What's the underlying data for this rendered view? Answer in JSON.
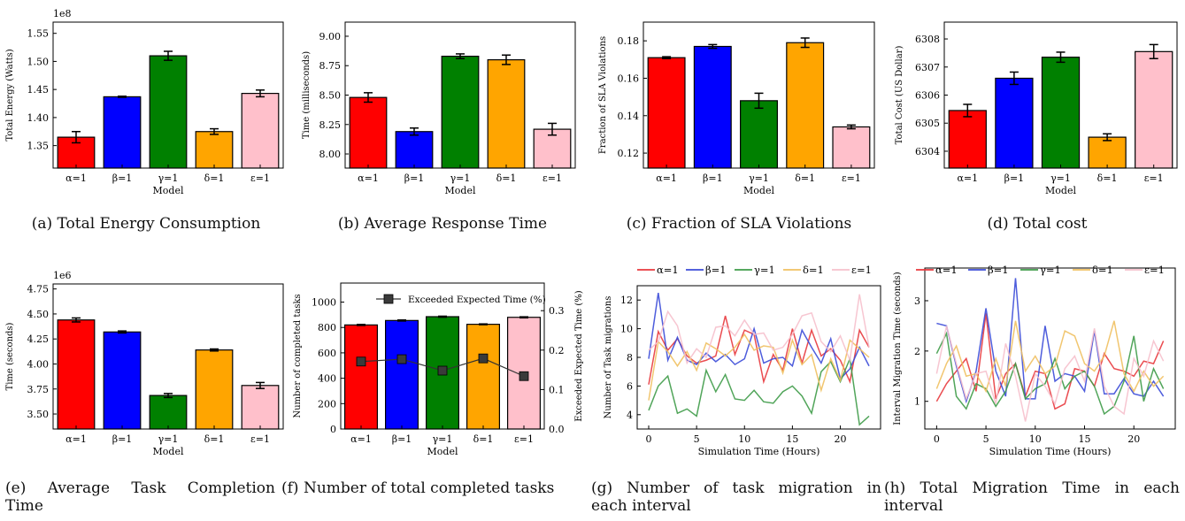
{
  "captions": [
    "(a) Total Energy Consumption",
    "(b) Average Response Time",
    "(c) Fraction of SLA Violations",
    "(d) Total cost",
    "(e) Average Task Completion",
    "Time",
    "(f) Number of total completed tasks",
    "(g) Number of task migration in",
    "each interval",
    "(h) Total Migration Time in each",
    "interval"
  ],
  "colors": {
    "bars": [
      "#ff0000",
      "#0000ff",
      "#008000",
      "#ffa500",
      "#ffc0cb"
    ],
    "lines": [
      "#e8383d",
      "#3b4bd8",
      "#3e9b48",
      "#f0c060",
      "#f6c0cc"
    ]
  },
  "chart_data": [
    {
      "id": "a",
      "type": "bar",
      "categories": [
        "α=1",
        "β=1",
        "γ=1",
        "δ=1",
        "ε=1"
      ],
      "values": [
        1.365,
        1.437,
        1.51,
        1.375,
        1.443
      ],
      "errors": [
        0.01,
        0.001,
        0.008,
        0.005,
        0.006
      ],
      "ylim": [
        1.31,
        1.57
      ],
      "yticks": [
        1.35,
        1.4,
        1.45,
        1.5,
        1.55
      ],
      "ytick_labels": [
        "1.35",
        "1.40",
        "1.45",
        "1.50",
        "1.55"
      ],
      "offset_label": "1e8",
      "xlabel": "Model",
      "ylabel": "Total Energy (Watts)"
    },
    {
      "id": "b",
      "type": "bar",
      "categories": [
        "α=1",
        "β=1",
        "γ=1",
        "δ=1",
        "ε=1"
      ],
      "values": [
        8.48,
        8.19,
        8.83,
        8.8,
        8.21
      ],
      "errors": [
        0.04,
        0.03,
        0.02,
        0.04,
        0.05
      ],
      "ylim": [
        7.88,
        9.12
      ],
      "yticks": [
        8.0,
        8.25,
        8.5,
        8.75,
        9.0
      ],
      "ytick_labels": [
        "8.00",
        "8.25",
        "8.50",
        "8.75",
        "9.00"
      ],
      "xlabel": "Model",
      "ylabel": "Time (milliseconds)"
    },
    {
      "id": "c",
      "type": "bar",
      "categories": [
        "α=1",
        "β=1",
        "γ=1",
        "δ=1",
        "ε=1"
      ],
      "values": [
        0.171,
        0.177,
        0.148,
        0.179,
        0.134
      ],
      "errors": [
        0.0005,
        0.001,
        0.004,
        0.0025,
        0.001
      ],
      "ylim": [
        0.112,
        0.19
      ],
      "yticks": [
        0.12,
        0.14,
        0.16,
        0.18
      ],
      "ytick_labels": [
        "0.12",
        "0.14",
        "0.16",
        "0.18"
      ],
      "xlabel": "Model",
      "ylabel": "Fraction of SLA Violations"
    },
    {
      "id": "d",
      "type": "bar",
      "categories": [
        "α=1",
        "β=1",
        "γ=1",
        "δ=1",
        "ε=1"
      ],
      "values": [
        6305.45,
        6306.6,
        6307.35,
        6304.5,
        6307.55
      ],
      "errors": [
        0.22,
        0.22,
        0.18,
        0.12,
        0.25
      ],
      "ylim": [
        6303.4,
        6308.6
      ],
      "yticks": [
        6304,
        6305,
        6306,
        6307,
        6308
      ],
      "ytick_labels": [
        "6304",
        "6305",
        "6306",
        "6307",
        "6308"
      ],
      "xlabel": "Model",
      "ylabel": "Total Cost (US Dollar)"
    },
    {
      "id": "e",
      "type": "bar",
      "categories": [
        "α=1",
        "β=1",
        "γ=1",
        "δ=1",
        "ε=1"
      ],
      "values": [
        4.44,
        4.32,
        3.685,
        4.14,
        3.785
      ],
      "errors": [
        0.02,
        0.01,
        0.02,
        0.01,
        0.03
      ],
      "ylim": [
        3.35,
        4.8
      ],
      "yticks": [
        3.5,
        3.75,
        4.0,
        4.25,
        4.5,
        4.75
      ],
      "ytick_labels": [
        "3.50",
        "3.75",
        "4.00",
        "4.25",
        "4.50",
        "4.75"
      ],
      "offset_label": "1e6",
      "xlabel": "Model",
      "ylabel": "Time (seconds)"
    },
    {
      "id": "f",
      "type": "bar",
      "categories": [
        "α=1",
        "β=1",
        "γ=1",
        "δ=1",
        "ε=1"
      ],
      "values": [
        820,
        855,
        885,
        825,
        880
      ],
      "errors": [
        4,
        4,
        4,
        3,
        4
      ],
      "ylim": [
        0,
        1150
      ],
      "yticks": [
        0,
        200,
        400,
        600,
        800,
        1000
      ],
      "ytick_labels": [
        "0",
        "200",
        "400",
        "600",
        "800",
        "1000"
      ],
      "line_series": {
        "name": "Exceeded Expected Time (%)",
        "values": [
          0.171,
          0.177,
          0.148,
          0.179,
          0.134
        ]
      },
      "y2lim": [
        0,
        0.37
      ],
      "y2ticks": [
        0.0,
        0.1,
        0.2,
        0.3
      ],
      "y2tick_labels": [
        "0.0",
        "0.1",
        "0.2",
        "0.3"
      ],
      "xlabel": "Model",
      "ylabel": "Number of completed tasks",
      "y2label": "Exceeded Expected Time (%)"
    },
    {
      "id": "g",
      "type": "line",
      "x": [
        0,
        1,
        2,
        3,
        4,
        5,
        6,
        7,
        8,
        9,
        10,
        11,
        12,
        13,
        14,
        15,
        16,
        17,
        18,
        19,
        20,
        21,
        22,
        23
      ],
      "series": [
        {
          "name": "α=1",
          "values": [
            6.1,
            9.8,
            8.5,
            9.3,
            8.1,
            7.6,
            7.8,
            8.1,
            10.9,
            8.2,
            9.9,
            9.6,
            6.3,
            8.2,
            7.1,
            10.0,
            7.6,
            9.9,
            8.1,
            8.6,
            7.8,
            6.3,
            9.9,
            8.7
          ]
        },
        {
          "name": "β=1",
          "values": [
            7.9,
            12.5,
            7.8,
            9.4,
            7.8,
            7.5,
            8.3,
            7.7,
            8.2,
            7.5,
            7.9,
            10.0,
            7.6,
            7.9,
            8.0,
            7.4,
            9.9,
            8.7,
            7.6,
            9.3,
            6.5,
            7.2,
            8.7,
            7.4
          ]
        },
        {
          "name": "γ=1",
          "values": [
            4.3,
            6.0,
            6.7,
            4.1,
            4.4,
            3.9,
            7.1,
            5.6,
            6.8,
            5.1,
            5.0,
            5.7,
            4.9,
            4.8,
            5.6,
            6.0,
            5.3,
            4.1,
            7.0,
            7.7,
            6.3,
            7.9,
            3.3,
            3.9
          ]
        },
        {
          "name": "δ=1",
          "values": [
            5.0,
            9.1,
            8.4,
            7.4,
            8.4,
            7.1,
            9.0,
            8.6,
            8.1,
            8.7,
            9.6,
            8.5,
            8.8,
            8.7,
            6.9,
            9.2,
            7.5,
            8.2,
            5.7,
            7.9,
            6.4,
            9.2,
            8.6,
            8.0
          ]
        },
        {
          "name": "ε=1",
          "values": [
            8.5,
            9.1,
            11.2,
            10.2,
            7.6,
            8.6,
            8.0,
            10.1,
            10.2,
            9.5,
            10.6,
            9.6,
            9.7,
            8.5,
            8.7,
            9.6,
            10.9,
            11.1,
            9.1,
            8.4,
            9.5,
            7.8,
            12.4,
            8.7
          ]
        }
      ],
      "ylim": [
        3.0,
        13.0
      ],
      "yticks": [
        4,
        6,
        8,
        10,
        12
      ],
      "xticks": [
        0,
        5,
        10,
        15,
        20
      ],
      "xlabel": "Simulation Time (Hours)",
      "ylabel": "Number of Task migrations"
    },
    {
      "id": "h",
      "type": "line",
      "x": [
        0,
        1,
        2,
        3,
        4,
        5,
        6,
        7,
        8,
        9,
        10,
        11,
        12,
        13,
        14,
        15,
        16,
        17,
        18,
        19,
        20,
        21,
        22,
        23
      ],
      "series": [
        {
          "name": "α=1",
          "values": [
            1.0,
            1.35,
            1.6,
            1.85,
            1.2,
            2.75,
            1.05,
            1.55,
            1.75,
            1.1,
            1.6,
            1.55,
            0.85,
            0.95,
            1.65,
            1.6,
            1.3,
            1.95,
            1.65,
            1.6,
            1.5,
            1.8,
            1.75,
            2.2
          ]
        },
        {
          "name": "β=1",
          "values": [
            2.55,
            2.5,
            1.7,
            1.0,
            1.6,
            2.85,
            1.6,
            1.1,
            3.45,
            1.05,
            1.05,
            2.5,
            1.4,
            1.55,
            1.5,
            1.2,
            2.4,
            1.15,
            1.15,
            1.45,
            1.15,
            1.1,
            1.4,
            1.1
          ]
        },
        {
          "name": "γ=1",
          "values": [
            1.95,
            2.35,
            1.1,
            0.85,
            1.35,
            1.25,
            0.9,
            1.2,
            1.75,
            1.05,
            1.25,
            1.35,
            1.85,
            1.25,
            1.5,
            1.6,
            1.3,
            0.75,
            0.9,
            1.4,
            2.3,
            1.0,
            1.65,
            1.25
          ]
        },
        {
          "name": "δ=1",
          "values": [
            1.25,
            1.75,
            2.1,
            1.5,
            1.55,
            1.2,
            1.85,
            1.3,
            2.6,
            1.6,
            1.9,
            1.55,
            1.7,
            2.4,
            2.3,
            1.75,
            1.6,
            1.9,
            2.6,
            1.55,
            1.2,
            1.6,
            1.3,
            1.5
          ]
        },
        {
          "name": "ε=1",
          "values": [
            1.55,
            2.5,
            1.75,
            1.05,
            1.55,
            1.6,
            0.95,
            2.15,
            1.5,
            0.6,
            1.55,
            1.3,
            0.95,
            1.65,
            1.9,
            1.4,
            2.45,
            1.3,
            0.9,
            0.75,
            1.85,
            1.5,
            2.2,
            1.8
          ]
        }
      ],
      "ylim": [
        0.45,
        3.65
      ],
      "yticks": [
        1,
        2,
        3
      ],
      "xticks": [
        0,
        5,
        10,
        15,
        20
      ],
      "xlabel": "Simulation Time (Hours)",
      "ylabel": "Interval Migration Time (seconds)"
    }
  ]
}
